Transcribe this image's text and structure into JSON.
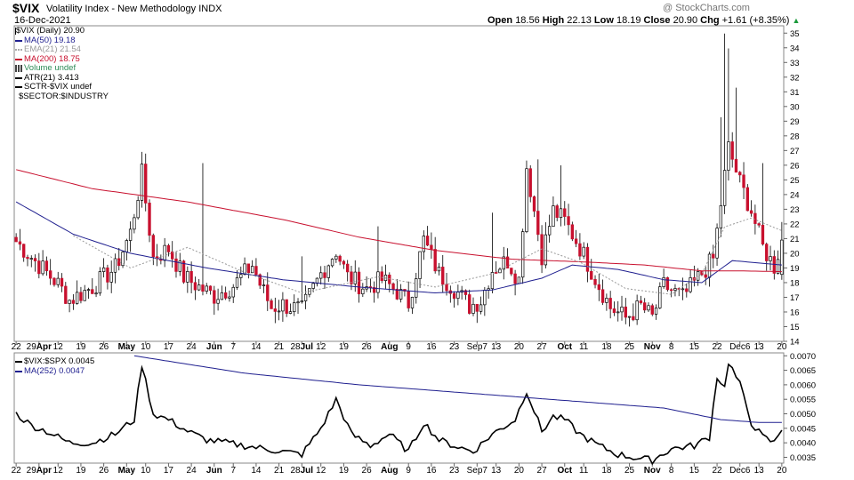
{
  "header": {
    "symbol": "$VIX",
    "description": "Volatility Index - New Methodology  INDX",
    "date": "16-Dec-2021",
    "watermark": "@ StockCharts.com",
    "open_label": "Open",
    "open": "18.56",
    "high_label": "High",
    "high": "22.13",
    "low_label": "Low",
    "low": "18.19",
    "close_label": "Close",
    "close": "20.90",
    "chg_label": "Chg",
    "chg": "+1.61 (+8.35%)"
  },
  "legend_top": [
    {
      "text": "$VIX (Daily) 20.90",
      "color": "#000000",
      "style": "candle"
    },
    {
      "text": "MA(50) 19.18",
      "color": "#1f1f8f",
      "style": "line"
    },
    {
      "text": "EMA(21) 21.54",
      "color": "#999999",
      "style": "dotted"
    },
    {
      "text": "MA(200) 18.75",
      "color": "#c8102e",
      "style": "line"
    },
    {
      "text": "Volume undef",
      "color": "#2e8b57",
      "style": "bars"
    },
    {
      "text": "ATR(21) 3.413",
      "color": "#000000",
      "style": "line"
    },
    {
      "text": "SCTR-$VIX undef",
      "color": "#000000",
      "style": "line"
    },
    {
      "text": "$SECTOR:$INDUSTRY",
      "color": "#000000",
      "style": "none"
    }
  ],
  "legend_bottom": [
    {
      "text": "$VIX:$SPX 0.0045",
      "color": "#000000",
      "style": "line"
    },
    {
      "text": "MA(252) 0.0047",
      "color": "#1f1f8f",
      "style": "line"
    }
  ],
  "chart_data": [
    {
      "type": "candlestick",
      "title": "$VIX (Daily)",
      "ylim": [
        14,
        35.5
      ],
      "y_ticks": [
        "14",
        "15",
        "16",
        "17",
        "18",
        "19",
        "20",
        "21",
        "22",
        "23",
        "24",
        "25",
        "26",
        "27",
        "28",
        "29",
        "30",
        "31",
        "32",
        "33",
        "34",
        "35"
      ],
      "x_ticks": [
        "22",
        "29Apr",
        "12",
        "19",
        "26",
        "May",
        "10",
        "17",
        "24",
        "Jun",
        "7",
        "14",
        "21",
        "28Jul",
        "12",
        "19",
        "26",
        "Aug",
        "9",
        "16",
        "23",
        "Sep7",
        "13",
        "20",
        "27",
        "Oct",
        "11",
        "18",
        "25",
        "Nov",
        "8",
        "15",
        "22",
        "Dec6",
        "13",
        "20"
      ],
      "bold_ticks": [
        "Apr",
        "May",
        "Jun",
        "Jul",
        "Aug",
        "Sep",
        "Oct",
        "Nov",
        "Dec"
      ],
      "anchors": [
        [
          0,
          20.8
        ],
        [
          6,
          19.2
        ],
        [
          11,
          17.9
        ],
        [
          14,
          16.8
        ],
        [
          20,
          17.7
        ],
        [
          26,
          19.0
        ],
        [
          30,
          21.4
        ],
        [
          33,
          25.4
        ],
        [
          36,
          19.7
        ],
        [
          40,
          20.3
        ],
        [
          44,
          18.4
        ],
        [
          48,
          17.7
        ],
        [
          52,
          17.1
        ],
        [
          57,
          17.8
        ],
        [
          62,
          19.2
        ],
        [
          64,
          17.9
        ],
        [
          67,
          16.3
        ],
        [
          70,
          16.5
        ],
        [
          75,
          16.1
        ],
        [
          80,
          18.6
        ],
        [
          84,
          20.2
        ],
        [
          87,
          18.4
        ],
        [
          92,
          17.6
        ],
        [
          96,
          18.2
        ],
        [
          100,
          17.4
        ],
        [
          103,
          16.6
        ],
        [
          107,
          20.9
        ],
        [
          111,
          18.6
        ],
        [
          115,
          17.6
        ],
        [
          119,
          16.4
        ],
        [
          122,
          16.8
        ],
        [
          125,
          18.9
        ],
        [
          129,
          19.5
        ],
        [
          132,
          18.2
        ],
        [
          134,
          25.9
        ],
        [
          138,
          19.9
        ],
        [
          141,
          22.9
        ],
        [
          144,
          22.2
        ],
        [
          148,
          20.4
        ],
        [
          152,
          18.3
        ],
        [
          156,
          16.3
        ],
        [
          160,
          15.6
        ],
        [
          164,
          16.4
        ],
        [
          167,
          15.6
        ],
        [
          170,
          17.8
        ],
        [
          175,
          17.0
        ],
        [
          179,
          18.3
        ],
        [
          183,
          19.6
        ],
        [
          187,
          27.2
        ],
        [
          190,
          24.8
        ],
        [
          193,
          22.9
        ],
        [
          196,
          20.4
        ],
        [
          199,
          19.1
        ],
        [
          201,
          20.9
        ]
      ],
      "spikes": [
        [
          49,
          7.5
        ],
        [
          75,
          2.5
        ],
        [
          95,
          3.0
        ],
        [
          125,
          3.5
        ],
        [
          137,
          3.5
        ],
        [
          143,
          2.5
        ],
        [
          185,
          5.5
        ],
        [
          186,
          8.5
        ],
        [
          187,
          6.0
        ],
        [
          189,
          4.0
        ],
        [
          196,
          3.5
        ]
      ],
      "last": {
        "open": 18.56,
        "high": 22.13,
        "low": 18.19,
        "close": 20.9
      },
      "series": [
        {
          "name": "MA(50)",
          "color": "#1f1f8f",
          "anchors": [
            [
              0,
              23.5
            ],
            [
              15,
              21.3
            ],
            [
              30,
              20.0
            ],
            [
              50,
              19.0
            ],
            [
              70,
              18.2
            ],
            [
              90,
              17.7
            ],
            [
              110,
              17.3
            ],
            [
              125,
              17.5
            ],
            [
              138,
              18.3
            ],
            [
              146,
              19.2
            ],
            [
              158,
              18.9
            ],
            [
              170,
              18.2
            ],
            [
              180,
              18.0
            ],
            [
              188,
              19.5
            ],
            [
              201,
              19.2
            ]
          ]
        },
        {
          "name": "MA(200)",
          "color": "#c8102e",
          "anchors": [
            [
              0,
              25.7
            ],
            [
              20,
              24.4
            ],
            [
              45,
              23.5
            ],
            [
              70,
              22.3
            ],
            [
              90,
              21.1
            ],
            [
              110,
              20.2
            ],
            [
              130,
              19.6
            ],
            [
              150,
              19.4
            ],
            [
              165,
              19.2
            ],
            [
              180,
              18.8
            ],
            [
              190,
              18.8
            ],
            [
              201,
              18.75
            ]
          ]
        },
        {
          "name": "EMA(21)",
          "color": "#999999",
          "anchors": [
            [
              15,
              21.2
            ],
            [
              30,
              19.0
            ],
            [
              45,
              20.4
            ],
            [
              60,
              18.7
            ],
            [
              75,
              17.3
            ],
            [
              95,
              18.4
            ],
            [
              110,
              17.7
            ],
            [
              125,
              18.6
            ],
            [
              138,
              20.3
            ],
            [
              148,
              19.4
            ],
            [
              160,
              17.6
            ],
            [
              172,
              17.2
            ],
            [
              180,
              18.6
            ],
            [
              186,
              21.8
            ],
            [
              193,
              22.4
            ],
            [
              201,
              21.54
            ]
          ]
        }
      ]
    },
    {
      "type": "line",
      "title": "$VIX:$SPX",
      "ylim": [
        0.0033,
        0.0071
      ],
      "y_ticks": [
        "0.0035",
        "0.0040",
        "0.0045",
        "0.0050",
        "0.0055",
        "0.0060",
        "0.0065",
        "0.0070"
      ],
      "x_ticks": [
        "22",
        "29Apr",
        "12",
        "19",
        "26",
        "May",
        "10",
        "17",
        "24",
        "Jun",
        "7",
        "14",
        "21",
        "28Jul",
        "12",
        "19",
        "26",
        "Aug",
        "9",
        "16",
        "23",
        "Sep7",
        "13",
        "20",
        "27",
        "Oct",
        "11",
        "18",
        "25",
        "Nov",
        "8",
        "15",
        "22",
        "Dec6",
        "13",
        "20"
      ],
      "series": [
        {
          "name": "$VIX:$SPX",
          "color": "#000000",
          "anchors": [
            [
              0,
              0.005
            ],
            [
              4,
              0.0046
            ],
            [
              8,
              0.0044
            ],
            [
              14,
              0.004
            ],
            [
              20,
              0.004
            ],
            [
              26,
              0.0043
            ],
            [
              31,
              0.0048
            ],
            [
              33,
              0.0067
            ],
            [
              36,
              0.005
            ],
            [
              40,
              0.0048
            ],
            [
              45,
              0.0044
            ],
            [
              50,
              0.0041
            ],
            [
              55,
              0.004
            ],
            [
              60,
              0.0039
            ],
            [
              65,
              0.0038
            ],
            [
              70,
              0.0037
            ],
            [
              75,
              0.0036
            ],
            [
              80,
              0.0045
            ],
            [
              84,
              0.0055
            ],
            [
              88,
              0.0043
            ],
            [
              93,
              0.0039
            ],
            [
              98,
              0.0043
            ],
            [
              103,
              0.0037
            ],
            [
              107,
              0.0047
            ],
            [
              111,
              0.0041
            ],
            [
              115,
              0.0039
            ],
            [
              120,
              0.0037
            ],
            [
              125,
              0.0043
            ],
            [
              131,
              0.0048
            ],
            [
              134,
              0.0058
            ],
            [
              138,
              0.0044
            ],
            [
              141,
              0.0049
            ],
            [
              144,
              0.0048
            ],
            [
              148,
              0.0043
            ],
            [
              153,
              0.0039
            ],
            [
              158,
              0.0036
            ],
            [
              162,
              0.0035
            ],
            [
              167,
              0.0034
            ],
            [
              172,
              0.0038
            ],
            [
              178,
              0.0039
            ],
            [
              182,
              0.0042
            ],
            [
              184,
              0.0063
            ],
            [
              186,
              0.0059
            ],
            [
              187,
              0.0068
            ],
            [
              190,
              0.006
            ],
            [
              193,
              0.0047
            ],
            [
              196,
              0.0042
            ],
            [
              199,
              0.004
            ],
            [
              201,
              0.0045
            ]
          ]
        },
        {
          "name": "MA(252)",
          "color": "#1f1f8f",
          "anchors": [
            [
              31,
              0.007
            ],
            [
              60,
              0.0064
            ],
            [
              90,
              0.006
            ],
            [
              120,
              0.0057
            ],
            [
              150,
              0.0054
            ],
            [
              170,
              0.0052
            ],
            [
              185,
              0.0048
            ],
            [
              195,
              0.0047
            ],
            [
              201,
              0.0047
            ]
          ]
        }
      ]
    }
  ]
}
